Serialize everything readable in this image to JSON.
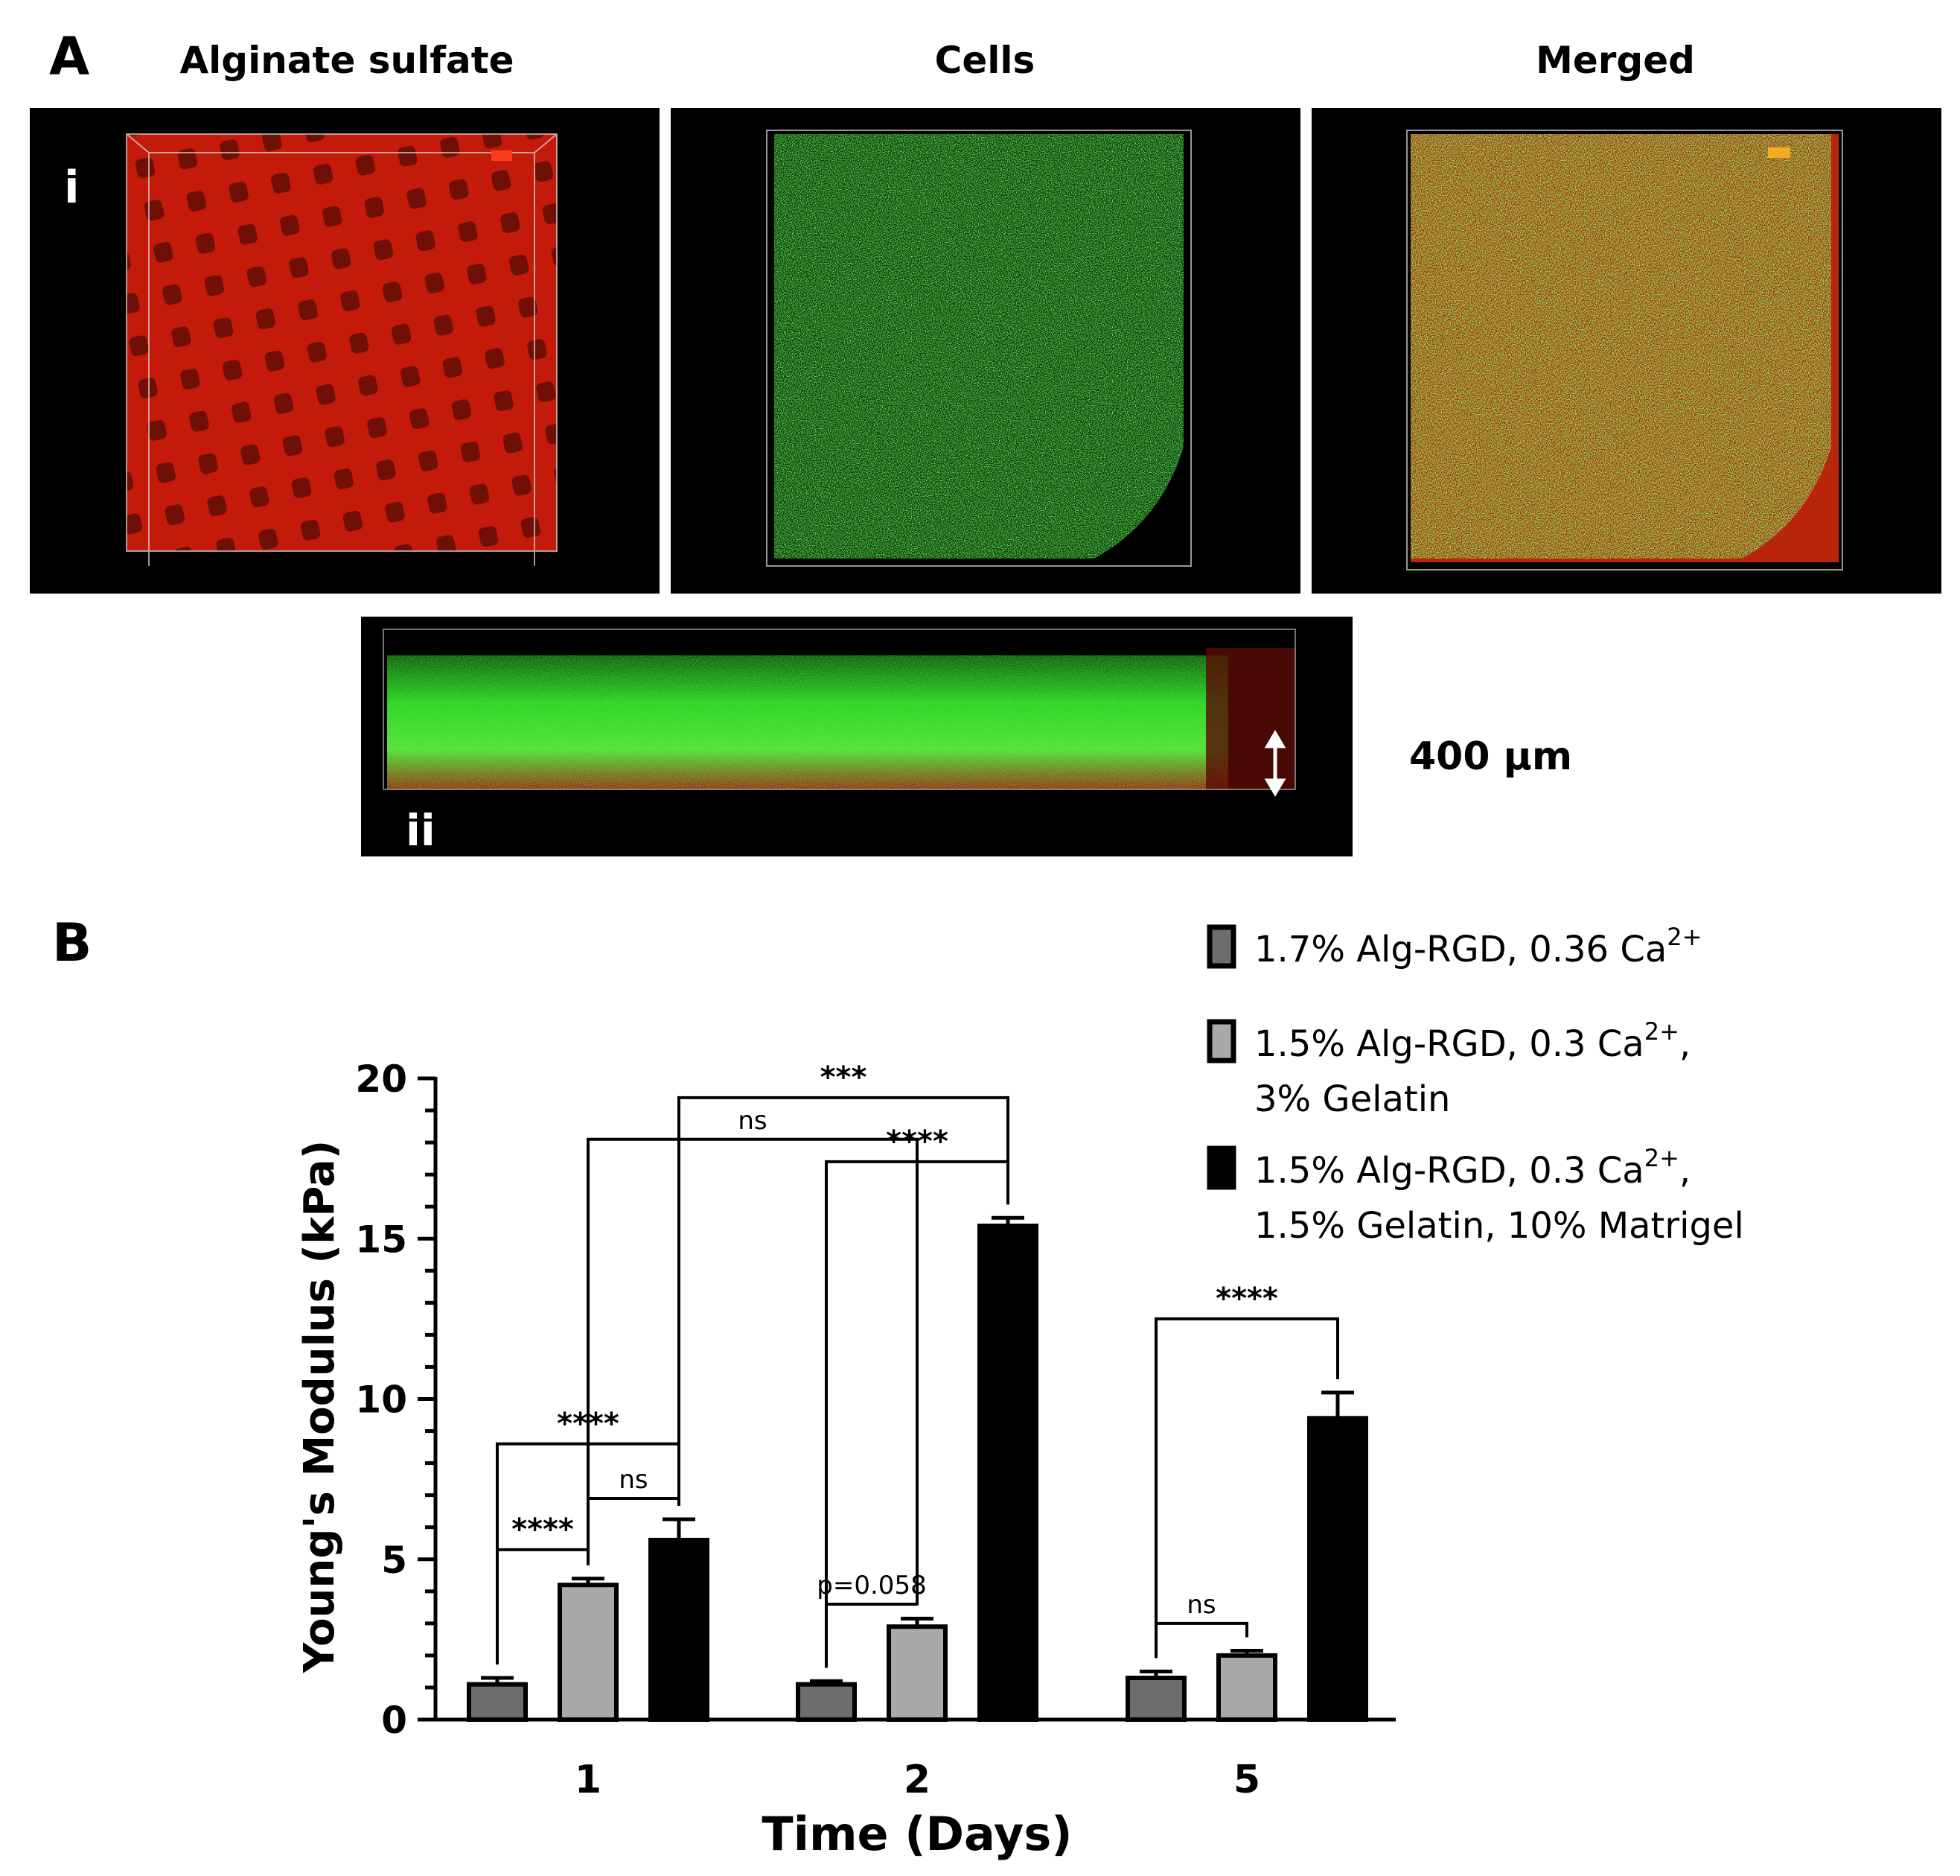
{
  "panel_a": {
    "letter": "A",
    "columns": [
      "Alginate sulfate",
      "Cells",
      "Merged"
    ],
    "sublabel_i": "i",
    "sublabel_ii": "ii",
    "scale_text": "400 µm"
  },
  "panel_b": {
    "letter": "B"
  },
  "colors": {
    "series1": "#6d6d6d",
    "series2": "#a9a9a9",
    "series3": "#000000",
    "red": "#c41a0a",
    "green": "#22d11d"
  },
  "chart_data": {
    "type": "bar",
    "xlabel": "Time (Days)",
    "ylabel": "Young's Modulus (kPa)",
    "ylim": [
      0,
      20
    ],
    "yticks": [
      "0",
      "5",
      "10",
      "15",
      "20"
    ],
    "categories": [
      "1",
      "2",
      "5"
    ],
    "series": [
      {
        "name": "1.7% Alg-RGD, 0.36 Ca2+",
        "legend": [
          "1.7% Alg-RGD, 0.36 Ca",
          "2+",
          ""
        ],
        "values": [
          1.1,
          1.1,
          1.3
        ],
        "errors": [
          0.2,
          0.1,
          0.2
        ]
      },
      {
        "name": "1.5% Alg-RGD, 0.3 Ca2+, 3% Gelatin",
        "legend": [
          "1.5% Alg-RGD, 0.3 Ca",
          "2+",
          ",",
          "3% Gelatin"
        ],
        "values": [
          4.2,
          2.9,
          2.0
        ],
        "errors": [
          0.2,
          0.25,
          0.15
        ]
      },
      {
        "name": "1.5% Alg-RGD, 0.3 Ca2+, 1.5% Gelatin, 10% Matrigel",
        "legend": [
          "1.5% Alg-RGD, 0.3 Ca",
          "2+",
          ",",
          "1.5% Gelatin, 10% Matrigel"
        ],
        "values": [
          5.6,
          15.4,
          9.4
        ],
        "errors": [
          0.65,
          0.25,
          0.8
        ]
      }
    ],
    "annotations": [
      {
        "text": "****",
        "from": [
          0,
          0
        ],
        "to": [
          0,
          1
        ],
        "y": 5.3
      },
      {
        "text": "ns",
        "from": [
          0,
          1
        ],
        "to": [
          0,
          2
        ],
        "y": 6.9
      },
      {
        "text": "****",
        "from": [
          0,
          0
        ],
        "to": [
          0,
          2
        ],
        "y": 8.6
      },
      {
        "text": "p=0.058",
        "from": [
          1,
          0
        ],
        "to": [
          1,
          1
        ],
        "y": 3.6
      },
      {
        "text": "****",
        "from": [
          1,
          0
        ],
        "to": [
          1,
          2
        ],
        "y": 17.4
      },
      {
        "text": "ns",
        "from": [
          0,
          1
        ],
        "to": [
          1,
          1
        ],
        "y": 18.1
      },
      {
        "text": "***",
        "from": [
          0,
          2
        ],
        "to": [
          1,
          2
        ],
        "y": 19.4
      },
      {
        "text": "ns",
        "from": [
          2,
          0
        ],
        "to": [
          2,
          1
        ],
        "y": 3.0
      },
      {
        "text": "****",
        "from": [
          2,
          0
        ],
        "to": [
          2,
          2
        ],
        "y": 12.5
      }
    ]
  }
}
